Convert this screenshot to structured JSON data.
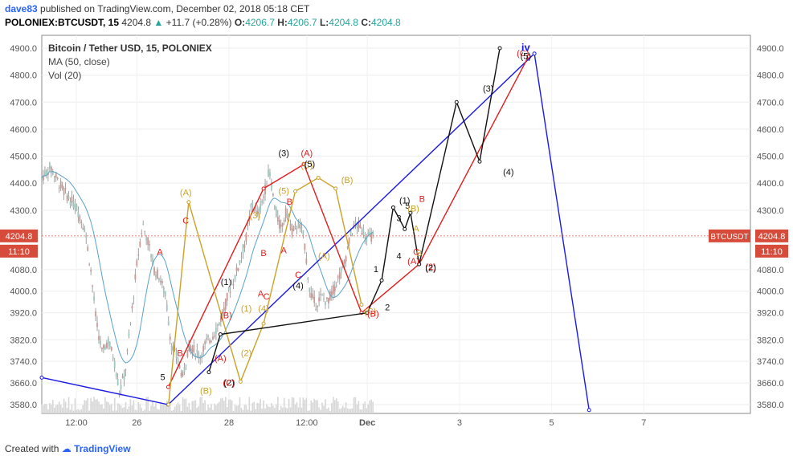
{
  "header": {
    "user": "dave83",
    "published_text": "published on TradingView.com, December 02, 2018 05:18 CET",
    "symbol": "POLONIEX:BTCUSDT, 15",
    "last": "4204.8",
    "change": "+11.7 (+0.28%)",
    "o_label": "O:",
    "o_val": "4206.7",
    "h_label": "H:",
    "h_val": "4206.7",
    "l_label": "L:",
    "l_val": "4204.8",
    "c_label": "C:",
    "c_val": "4204.8"
  },
  "legend": {
    "title": "Bitcoin / Tether USD, 15, POLONIEX",
    "ma": "MA (50, close)",
    "vol": "Vol (20)"
  },
  "price_tag": {
    "symbol": "BTCUSDT",
    "price": "4204.8",
    "countdown": "11:10"
  },
  "footer": {
    "created_with": "Created with",
    "brand": "TradingView"
  },
  "colors": {
    "blue_line": "#1a1ae6",
    "red_line": "#e31b1b",
    "gold_line": "#c9a227",
    "black_line": "#111111",
    "ma_line": "#5aa2c8",
    "price_line": "#e55c4a",
    "candle": "#8c8c8c",
    "volume": "#d7d7d7"
  },
  "chart_data": {
    "type": "line",
    "series_type": "candlestick",
    "ylim": [
      3560,
      4960
    ],
    "yticks": [
      4900,
      4800,
      4700,
      4600,
      4500,
      4400,
      4300,
      4200,
      4080,
      4000,
      3920,
      3820,
      3740,
      3660,
      3580
    ],
    "ytick_labels": [
      "4900.0",
      "4800.0",
      "4700.0",
      "4600.0",
      "4500.0",
      "4400.0",
      "4300.0",
      "4204.8",
      "4080.0",
      "4000.0",
      "3920.0",
      "3820.0",
      "3740.0",
      "3660.0",
      "3580.0"
    ],
    "xtick_labels": [
      "12:00",
      "26",
      "28",
      "12:00",
      "Dec",
      "3",
      "5",
      "7"
    ],
    "current_price": 4204.8,
    "price_path": [
      [
        0,
        4420
      ],
      [
        3,
        4460
      ],
      [
        6,
        4400
      ],
      [
        9,
        4350
      ],
      [
        12,
        4310
      ],
      [
        15,
        4230
      ],
      [
        17,
        4080
      ],
      [
        19,
        3880
      ],
      [
        21,
        3770
      ],
      [
        23,
        3820
      ],
      [
        25,
        3750
      ],
      [
        27,
        3630
      ],
      [
        29,
        3700
      ],
      [
        31,
        3900
      ],
      [
        33,
        4100
      ],
      [
        35,
        4250
      ],
      [
        37,
        4180
      ],
      [
        39,
        4080
      ],
      [
        41,
        4050
      ],
      [
        43,
        3980
      ],
      [
        45,
        3800
      ],
      [
        47,
        3750
      ],
      [
        49,
        3680
      ],
      [
        51,
        3800
      ],
      [
        53,
        3780
      ],
      [
        55,
        3760
      ],
      [
        57,
        3810
      ],
      [
        59,
        3830
      ],
      [
        61,
        3870
      ],
      [
        63,
        3920
      ],
      [
        65,
        4000
      ],
      [
        67,
        4050
      ],
      [
        69,
        4120
      ],
      [
        71,
        4200
      ],
      [
        73,
        4330
      ],
      [
        75,
        4280
      ],
      [
        77,
        4350
      ],
      [
        79,
        4450
      ],
      [
        81,
        4300
      ],
      [
        83,
        4230
      ],
      [
        85,
        4300
      ],
      [
        87,
        4220
      ],
      [
        89,
        4250
      ],
      [
        91,
        4200
      ],
      [
        93,
        4000
      ],
      [
        95,
        3950
      ],
      [
        97,
        3980
      ],
      [
        99,
        3960
      ],
      [
        101,
        4000
      ],
      [
        103,
        4050
      ],
      [
        105,
        4100
      ],
      [
        107,
        4200
      ],
      [
        109,
        4250
      ],
      [
        111,
        4230
      ],
      [
        113,
        4200
      ],
      [
        115,
        4204.8
      ]
    ],
    "wave_lines": {
      "blue": [
        [
          0,
          3680
        ],
        [
          43.9,
          3580
        ],
        [
          171,
          4880
        ],
        [
          190,
          3560
        ]
      ],
      "red": [
        [
          43.9,
          3645
        ],
        [
          77,
          4380
        ],
        [
          91,
          4470
        ],
        [
          111,
          3920
        ],
        [
          131,
          4100
        ],
        [
          169,
          4870
        ]
      ],
      "gold": [
        [
          44,
          3580
        ],
        [
          51,
          4330
        ],
        [
          69,
          3665
        ],
        [
          77,
          3880
        ],
        [
          88,
          4370
        ],
        [
          96,
          4420
        ],
        [
          102,
          4380
        ],
        [
          111,
          3950
        ]
      ],
      "black": [
        [
          58,
          3700
        ],
        [
          62,
          3840
        ],
        [
          113,
          3920
        ],
        [
          118,
          4040
        ],
        [
          122,
          4310
        ],
        [
          126,
          4230
        ],
        [
          128,
          4290
        ],
        [
          131,
          4100
        ],
        [
          144,
          4700
        ],
        [
          152,
          4480
        ],
        [
          159,
          4900
        ]
      ]
    },
    "labels": [
      {
        "t": "(A)",
        "x": 50,
        "y": 4355,
        "c": "gold"
      },
      {
        "t": "C",
        "x": 50,
        "y": 4250,
        "c": "red"
      },
      {
        "t": "A",
        "x": 41,
        "y": 4135,
        "c": "red"
      },
      {
        "t": "B",
        "x": 48,
        "y": 3760,
        "c": "red"
      },
      {
        "t": "5",
        "x": 42,
        "y": 3670,
        "c": "black"
      },
      {
        "t": "(1)",
        "x": 64,
        "y": 4023,
        "c": "black"
      },
      {
        "t": "(B)",
        "x": 64,
        "y": 3900,
        "c": "red"
      },
      {
        "t": "(A)",
        "x": 62,
        "y": 3740,
        "c": "red"
      },
      {
        "t": "(2)",
        "x": 65,
        "y": 3650,
        "c": "black"
      },
      {
        "t": "(C)",
        "x": 65,
        "y": 3650,
        "c": "red"
      },
      {
        "t": "(B)",
        "x": 57,
        "y": 3620,
        "c": "gold"
      },
      {
        "t": "(1)",
        "x": 71,
        "y": 3925,
        "c": "gold"
      },
      {
        "t": "(2)",
        "x": 71,
        "y": 3760,
        "c": "gold"
      },
      {
        "t": "(4)",
        "x": 77,
        "y": 3925,
        "c": "gold"
      },
      {
        "t": "A",
        "x": 76,
        "y": 3980,
        "c": "red"
      },
      {
        "t": "C",
        "x": 78,
        "y": 3970,
        "c": "red"
      },
      {
        "t": "B",
        "x": 77,
        "y": 4130,
        "c": "red"
      },
      {
        "t": "(3)",
        "x": 74,
        "y": 4270,
        "c": "gold"
      },
      {
        "t": "(3)",
        "x": 84,
        "y": 4500,
        "c": "black"
      },
      {
        "t": "(5)",
        "x": 84,
        "y": 4360,
        "c": "gold"
      },
      {
        "t": "B",
        "x": 86,
        "y": 4320,
        "c": "red"
      },
      {
        "t": "A",
        "x": 84,
        "y": 4140,
        "c": "red"
      },
      {
        "t": "C",
        "x": 89,
        "y": 4050,
        "c": "red"
      },
      {
        "t": "(4)",
        "x": 89,
        "y": 4010,
        "c": "black"
      },
      {
        "t": "(A)",
        "x": 92,
        "y": 4500,
        "c": "red"
      },
      {
        "t": "(C)",
        "x": 92,
        "y": 4455,
        "c": "gold"
      },
      {
        "t": "(5)",
        "x": 93,
        "y": 4460,
        "c": "black"
      },
      {
        "t": "(A)",
        "x": 98,
        "y": 4120,
        "c": "gold"
      },
      {
        "t": "(B)",
        "x": 106,
        "y": 4400,
        "c": "gold"
      },
      {
        "t": "(C)",
        "x": 114,
        "y": 3915,
        "c": "gold"
      },
      {
        "t": "(B)",
        "x": 115,
        "y": 3905,
        "c": "red"
      },
      {
        "t": "1",
        "x": 116,
        "y": 4070,
        "c": "black"
      },
      {
        "t": "2",
        "x": 120,
        "y": 3930,
        "c": "black"
      },
      {
        "t": "3",
        "x": 124,
        "y": 4260,
        "c": "black"
      },
      {
        "t": "(1)",
        "x": 126,
        "y": 4325,
        "c": "black"
      },
      {
        "t": "5",
        "x": 127,
        "y": 4305,
        "c": "black"
      },
      {
        "t": "(B)",
        "x": 129,
        "y": 4295,
        "c": "gold"
      },
      {
        "t": "A",
        "x": 130,
        "y": 4220,
        "c": "gold"
      },
      {
        "t": "B",
        "x": 132,
        "y": 4330,
        "c": "red"
      },
      {
        "t": "4",
        "x": 124,
        "y": 4120,
        "c": "black"
      },
      {
        "t": "(A)",
        "x": 129,
        "y": 4100,
        "c": "red"
      },
      {
        "t": "B",
        "x": 131,
        "y": 4130,
        "c": "gold"
      },
      {
        "t": "C",
        "x": 130,
        "y": 4135,
        "c": "red"
      },
      {
        "t": "(2)",
        "x": 135,
        "y": 4080,
        "c": "red"
      },
      {
        "t": "(2)",
        "x": 135,
        "y": 4075,
        "c": "black"
      },
      {
        "t": "(3)",
        "x": 155,
        "y": 4740,
        "c": "black"
      },
      {
        "t": "(4)",
        "x": 162,
        "y": 4430,
        "c": "black"
      },
      {
        "t": "(C)",
        "x": 167,
        "y": 4870,
        "c": "red"
      },
      {
        "t": "(5)",
        "x": 168,
        "y": 4860,
        "c": "black"
      },
      {
        "t": "iv",
        "x": 168,
        "y": 4890,
        "c": "blue"
      }
    ]
  }
}
